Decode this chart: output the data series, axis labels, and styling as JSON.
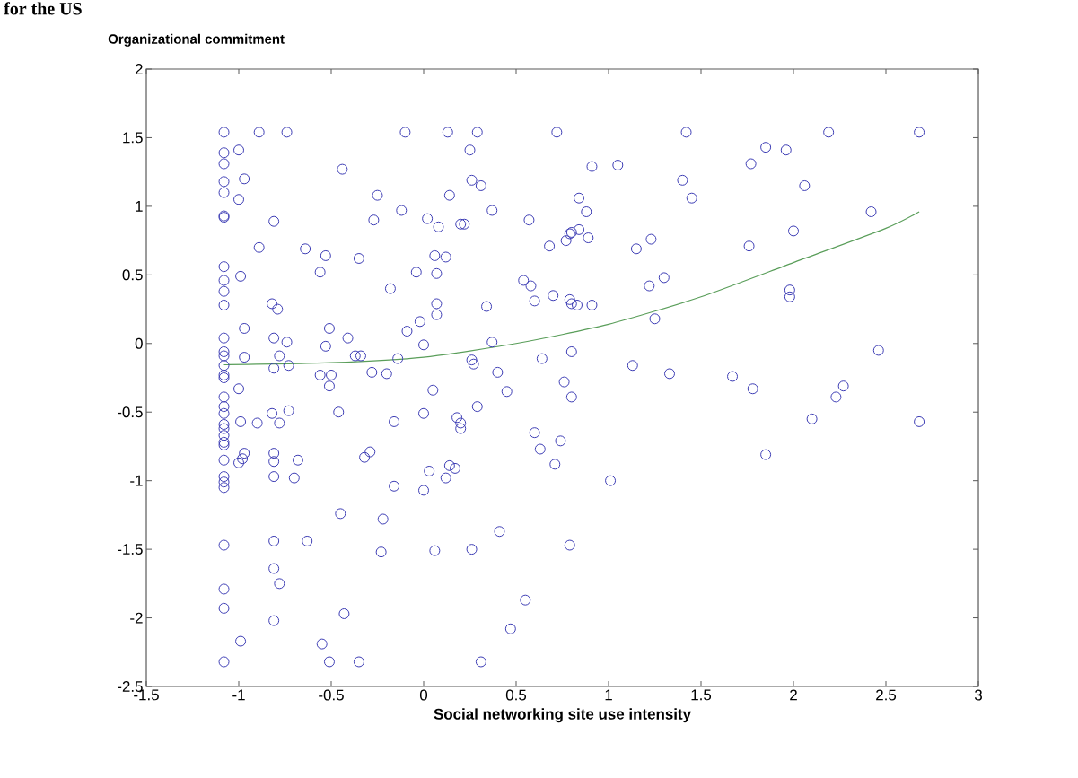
{
  "chart_data": {
    "type": "scatter",
    "title": "for the US",
    "xlabel": "Social networking site use intensity",
    "ylabel": "Organizational commitment",
    "xlim": [
      -1.5,
      3
    ],
    "ylim": [
      -2.5,
      2
    ],
    "xticks": [
      -1.5,
      -1,
      -0.5,
      0,
      0.5,
      1,
      1.5,
      2,
      2.5,
      3
    ],
    "yticks": [
      -2.5,
      -2,
      -1.5,
      -1,
      -0.5,
      0,
      0.5,
      1,
      1.5,
      2
    ],
    "marker": "circle",
    "series": [
      {
        "color": "#3c3cb4",
        "x": [
          -1.08,
          -1.08,
          -1.08,
          -1.08,
          -1.08,
          -1.08,
          -1.08,
          -1.08,
          -1.08,
          -1.08,
          -1.08,
          -1.08,
          -1.08,
          -1.08,
          -1.08,
          -1.08,
          -1.08,
          -1.08,
          -1.08,
          -1.08,
          -1.08,
          -1.08,
          -1.08,
          -1.08,
          -1.08,
          -1.08,
          -1.08,
          -1.08,
          -1.08,
          -1.08,
          -1.08,
          -1.08,
          -1.08,
          -1.0,
          -0.97,
          -1.0,
          -0.89,
          -0.74,
          -0.81,
          -0.89,
          -0.99,
          -0.82,
          -0.79,
          -0.97,
          -0.97,
          -1.0,
          -0.99,
          -0.9,
          -0.78,
          -0.82,
          -0.73,
          -0.97,
          -0.98,
          -1.0,
          -0.81,
          -0.81,
          -0.68,
          -0.81,
          -0.7,
          -0.81,
          -0.74,
          -0.78,
          -0.81,
          -0.73,
          -0.64,
          -0.53,
          -0.56,
          -0.44,
          -0.35,
          -0.51,
          -0.53,
          -0.41,
          -0.37,
          -0.34,
          -0.56,
          -0.5,
          -0.51,
          -0.46,
          -0.32,
          -0.29,
          -0.81,
          -0.63,
          -0.81,
          -0.78,
          -0.81,
          -0.99,
          -0.55,
          -0.51,
          -0.35,
          -0.43,
          -0.45,
          -0.22,
          -0.23,
          -0.25,
          -0.27,
          -0.12,
          -0.1,
          -0.18,
          -0.04,
          -0.09,
          -0.28,
          -0.2,
          -0.14,
          -0.02,
          0.0,
          -0.16,
          0.0,
          -0.16,
          0.0,
          0.03,
          0.05,
          0.06,
          0.02,
          0.08,
          0.06,
          0.12,
          0.07,
          0.07,
          0.07,
          0.13,
          0.14,
          0.2,
          0.22,
          0.25,
          0.26,
          0.29,
          0.31,
          0.37,
          0.34,
          0.26,
          0.27,
          0.29,
          0.18,
          0.2,
          0.2,
          0.12,
          0.14,
          0.17,
          0.37,
          0.4,
          0.45,
          0.26,
          0.41,
          0.31,
          0.47,
          0.55,
          0.54,
          0.58,
          0.6,
          0.57,
          0.6,
          0.63,
          0.64,
          0.68,
          0.7,
          0.71,
          0.74,
          0.72,
          0.76,
          0.77,
          0.79,
          0.8,
          0.79,
          0.8,
          0.83,
          0.84,
          0.84,
          0.88,
          0.89,
          0.91,
          0.91,
          0.8,
          0.8,
          0.79,
          1.01,
          1.05,
          1.13,
          1.15,
          1.22,
          1.23,
          1.25,
          1.3,
          1.33,
          1.4,
          1.42,
          1.45,
          1.67,
          1.76,
          1.77,
          1.78,
          1.85,
          1.85,
          1.96,
          1.98,
          1.98,
          2.0,
          2.06,
          2.1,
          2.19,
          2.23,
          2.27,
          2.42,
          2.46,
          2.68,
          2.68
        ],
        "values": [
          1.54,
          1.39,
          1.31,
          1.18,
          1.1,
          0.93,
          0.92,
          0.56,
          0.46,
          0.38,
          0.28,
          0.04,
          -0.06,
          -0.09,
          -0.16,
          -0.23,
          -0.25,
          -0.39,
          -0.46,
          -0.51,
          -0.59,
          -0.62,
          -0.67,
          -0.72,
          -0.74,
          -0.85,
          -0.97,
          -1.01,
          -1.05,
          -1.47,
          -1.79,
          -1.93,
          -2.32,
          1.41,
          1.2,
          1.05,
          1.54,
          1.54,
          0.89,
          0.7,
          0.49,
          0.29,
          0.25,
          0.11,
          -0.1,
          -0.33,
          -0.57,
          -0.58,
          -0.58,
          -0.51,
          -0.49,
          -0.8,
          -0.84,
          -0.87,
          -0.8,
          -0.86,
          -0.85,
          -0.97,
          -0.98,
          0.04,
          0.01,
          -0.09,
          -0.18,
          -0.16,
          0.69,
          0.64,
          0.52,
          1.27,
          0.62,
          0.11,
          -0.02,
          0.04,
          -0.09,
          -0.09,
          -0.23,
          -0.23,
          -0.31,
          -0.5,
          -0.83,
          -0.79,
          -1.44,
          -1.44,
          -1.64,
          -1.75,
          -2.02,
          -2.17,
          -2.19,
          -2.32,
          -2.32,
          -1.97,
          -1.24,
          -1.28,
          -1.52,
          1.08,
          0.9,
          0.97,
          1.54,
          0.4,
          0.52,
          0.09,
          -0.21,
          -0.22,
          -0.11,
          0.16,
          -0.01,
          -0.57,
          -0.51,
          -1.04,
          -1.07,
          -0.93,
          -0.34,
          -1.51,
          0.91,
          0.85,
          0.64,
          0.63,
          0.51,
          0.29,
          0.21,
          1.54,
          1.08,
          0.87,
          0.87,
          1.41,
          1.19,
          1.54,
          1.15,
          0.97,
          0.27,
          -0.12,
          -0.15,
          -0.46,
          -0.54,
          -0.58,
          -0.62,
          -0.98,
          -0.89,
          -0.91,
          0.01,
          -0.21,
          -0.35,
          -1.5,
          -1.37,
          -2.32,
          -2.08,
          -1.87,
          0.46,
          0.42,
          0.31,
          0.9,
          -0.65,
          -0.77,
          -0.11,
          0.71,
          0.35,
          -0.88,
          -0.71,
          1.54,
          -0.28,
          0.75,
          0.8,
          0.81,
          0.32,
          0.29,
          0.28,
          0.83,
          1.06,
          0.96,
          0.77,
          0.28,
          1.29,
          -0.06,
          -0.39,
          -1.47,
          -1.0,
          1.3,
          -0.16,
          0.69,
          0.42,
          0.76,
          0.18,
          0.48,
          -0.22,
          1.19,
          1.54,
          1.06,
          -0.24,
          0.71,
          1.31,
          -0.33,
          1.43,
          -0.81,
          1.41,
          0.39,
          0.34,
          0.82,
          1.15,
          -0.55,
          1.54,
          -0.39,
          -0.31,
          0.96,
          -0.05,
          1.54,
          -0.57
        ]
      },
      {
        "type": "line",
        "color": "#5a9e5a",
        "marker": "none",
        "x": [
          -1.08,
          -0.5,
          0,
          0.5,
          1,
          1.5,
          2,
          2.5,
          2.68
        ],
        "values": [
          -0.155,
          -0.14,
          -0.1,
          0.0,
          0.14,
          0.34,
          0.59,
          0.84,
          0.96
        ]
      }
    ]
  }
}
